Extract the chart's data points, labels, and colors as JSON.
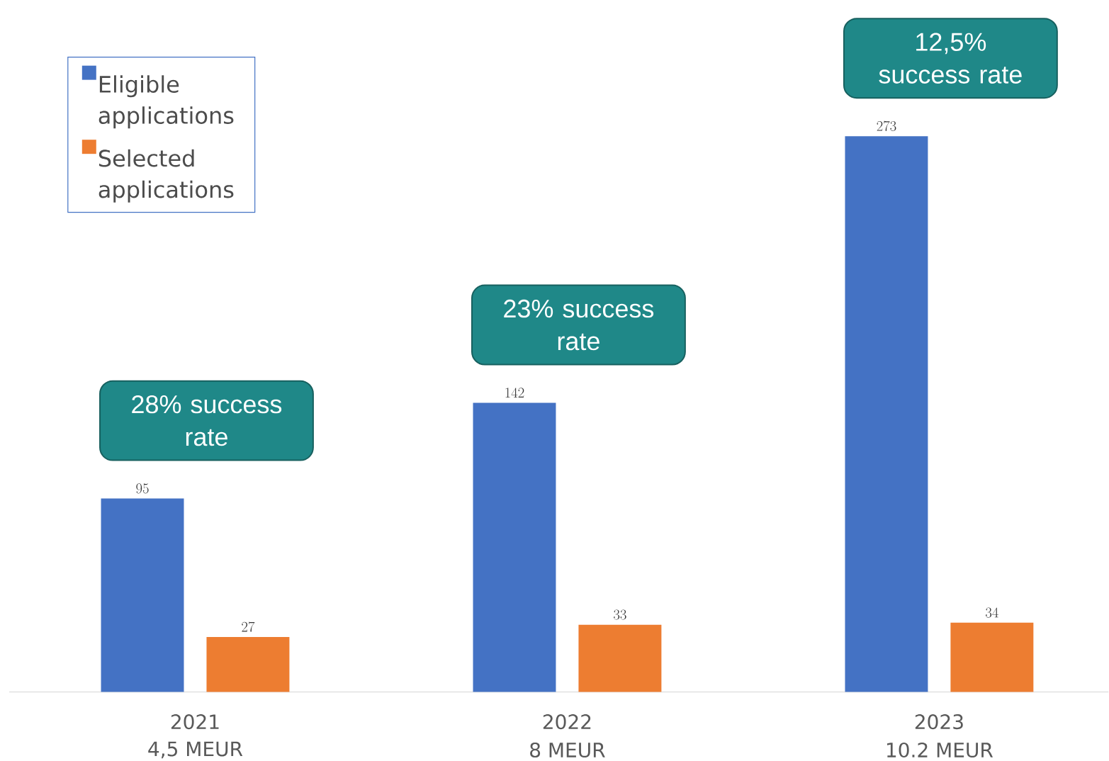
{
  "chart_data": {
    "type": "bar",
    "categories": [
      "2021",
      "2022",
      "2023"
    ],
    "series": [
      {
        "name": "Eligible applications",
        "color": "#4472c4",
        "values": [
          95,
          142,
          273
        ]
      },
      {
        "name": "Selected applications",
        "color": "#ed7d31",
        "values": [
          27,
          33,
          34
        ]
      }
    ],
    "data_labels": true,
    "legend": "top left",
    "annotations": [
      "28% success rate",
      "23% success rate",
      "12,5% success rate",
      "4,5 MEUR",
      "8 MEUR",
      "10.2 MEUR"
    ]
  }
}
